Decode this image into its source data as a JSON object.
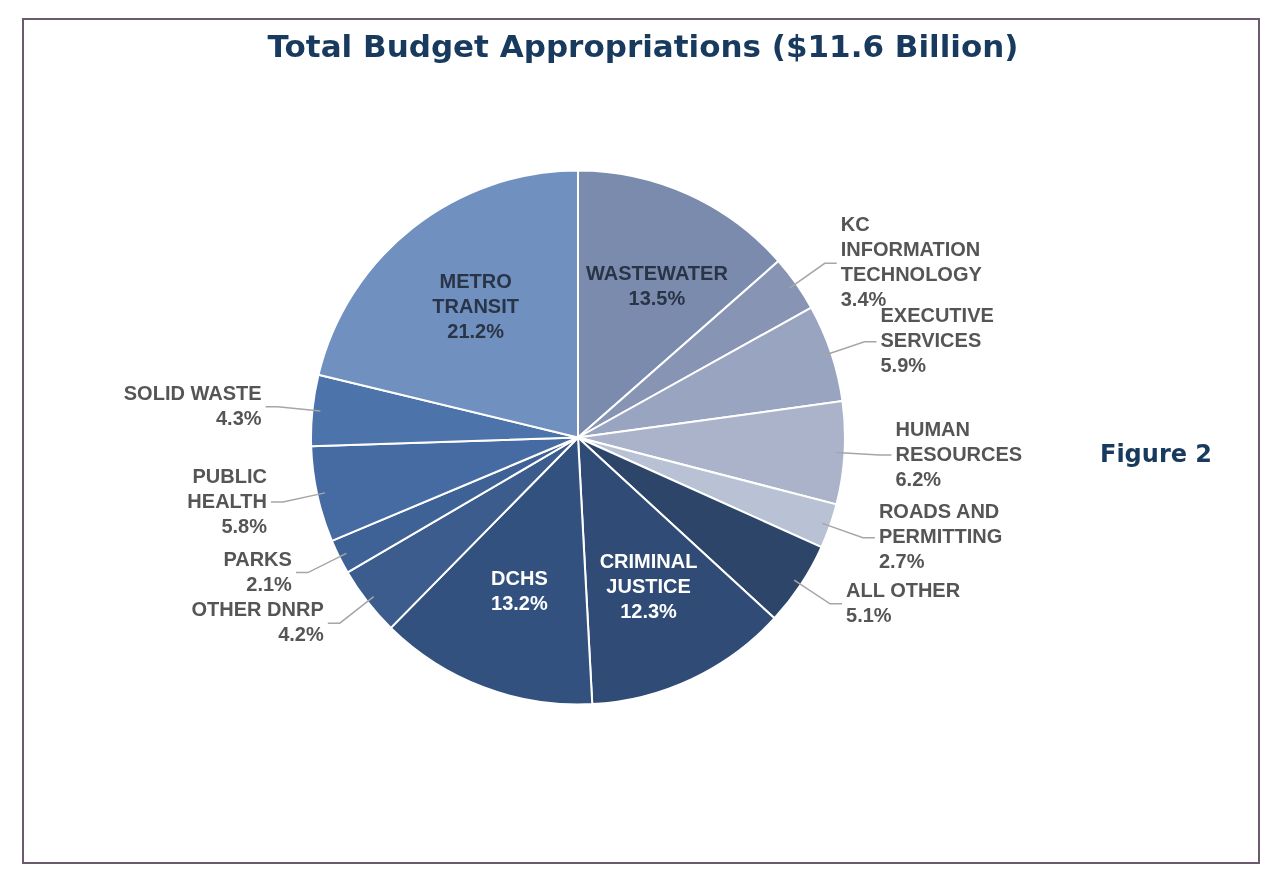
{
  "chart_data": {
    "type": "pie",
    "title": "Total Budget Appropriations ($11.6 Billion)",
    "categories": [
      "WASTEWATER",
      "KC INFORMATION TECHNOLOGY",
      "EXECUTIVE SERVICES",
      "HUMAN RESOURCES",
      "ROADS AND PERMITTING",
      "ALL OTHER",
      "CRIMINAL JUSTICE",
      "DCHS",
      "OTHER DNRP",
      "PARKS",
      "PUBLIC HEALTH",
      "SOLID WASTE",
      "METRO TRANSIT"
    ],
    "values": [
      13.5,
      3.4,
      5.9,
      6.2,
      2.7,
      5.1,
      12.3,
      13.2,
      4.2,
      2.1,
      5.8,
      4.3,
      21.2
    ],
    "colors": [
      "#7a8bae",
      "#8794b4",
      "#98a4c0",
      "#aab3ca",
      "#b9c1d4",
      "#2c4569",
      "#2f4b76",
      "#33517f",
      "#3b5c8d",
      "#3f6296",
      "#466ba2",
      "#4d73ab",
      "#7090c0"
    ],
    "value_labels": [
      "13.5%",
      "3.4%",
      "5.9%",
      "6.2%",
      "2.7%",
      "5.1%",
      "12.3%",
      "13.2%",
      "4.2%",
      "2.1%",
      "5.8%",
      "4.3%",
      "21.2%"
    ],
    "annotations": [
      "Figure 2"
    ],
    "legend": false
  }
}
